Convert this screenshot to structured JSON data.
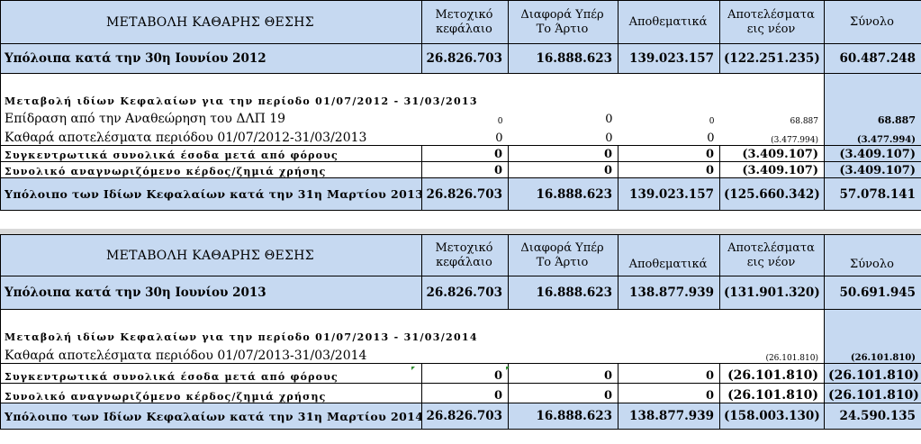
{
  "columns": [
    "Μετοχικό κεφάλαιο",
    "Διαφορά Υπέρ Το Άρτιο",
    "Αποθεματικά",
    "Αποτελέσματα εις νέον",
    "Σύνολο"
  ],
  "tables": [
    {
      "title": "ΜΕΤΑΒΟΛΗ ΚΑΘΑΡΗΣ ΘΕΣΗΣ",
      "col1": [
        "Μετοχικό",
        "κεφάλαιο"
      ],
      "col2": [
        "Διαφορά Υπέρ",
        "Το Άρτιο"
      ],
      "col3": "Αποθεματικά",
      "col4": [
        "Αποτελέσματα",
        "εις νέον"
      ],
      "col5": "Σύνολο",
      "opening": {
        "label": "Υπόλοιπα κατά την 30η Ιουνίου 2012",
        "values": [
          "26.826.703",
          "16.888.623",
          "139.023.157",
          "(122.251.235)",
          "60.487.248"
        ]
      },
      "caption": "Μεταβολή ιδίων Κεφαλαίων για την περίοδο 01/07/2012 - 31/03/2013",
      "rows": [
        {
          "label": "Επίδραση από την Αναθεώρηση του ΔΛΠ 19",
          "values": [
            "0",
            "0",
            "0",
            "68.887",
            "68.887"
          ]
        },
        {
          "label": "Καθαρά αποτελέσματα περιόδου 01/07/2012-31/03/2013",
          "values": [
            "0",
            "0",
            "0",
            "(3.477.994)",
            "(3.477.994)"
          ]
        },
        {
          "label": "Συγκεντρωτικά συνολικά έσοδα μετά από φόρους",
          "values": [
            "0",
            "0",
            "0",
            "(3.409.107)",
            "(3.409.107)"
          ]
        },
        {
          "label": "Συνολικό αναγνωριζόμενο κέρδος/ζημιά χρήσης",
          "values": [
            "0",
            "0",
            "0",
            "(3.409.107)",
            "(3.409.107)"
          ]
        }
      ],
      "closing": {
        "label": "Υπόλοιπο των Ιδίων Κεφαλαίων κατά την 31η Μαρτίου 2013",
        "values": [
          "26.826.703",
          "16.888.623",
          "139.023.157",
          "(125.660.342)",
          "57.078.141"
        ]
      }
    },
    {
      "title": "ΜΕΤΑΒΟΛΗ ΚΑΘΑΡΗΣ ΘΕΣΗΣ",
      "col1": [
        "Μετοχικό",
        "κεφάλαιο"
      ],
      "col2": [
        "Διαφορά Υπέρ",
        "Το Άρτιο"
      ],
      "col3": "Αποθεματικά",
      "col4": [
        "Αποτελέσματα",
        "εις νέον"
      ],
      "col5": "Σύνολο",
      "opening": {
        "label": "Υπόλοιπα κατά την 30η Ιουνίου 2013",
        "values": [
          "26.826.703",
          "16.888.623",
          "138.877.939",
          "(131.901.320)",
          "50.691.945"
        ]
      },
      "caption": "Μεταβολή ιδίων Κεφαλαίων για την περίοδο 01/07/2013 - 31/03/2014",
      "rows": [
        {
          "label": "Καθαρά αποτελέσματα περιόδου 01/07/2013-31/03/2014",
          "values": [
            "",
            "",
            "",
            "(26.101.810)",
            "(26.101.810)"
          ]
        },
        {
          "label": "Συγκεντρωτικά συνολικά έσοδα μετά από φόρους",
          "values": [
            "0",
            "0",
            "0",
            "(26.101.810)",
            "(26.101.810)"
          ]
        },
        {
          "label": "Συνολικό αναγνωριζόμενο κέρδος/ζημιά χρήσης",
          "values": [
            "0",
            "0",
            "0",
            "(26.101.810)",
            "(26.101.810)"
          ]
        }
      ],
      "closing": {
        "label": "Υπόλοιπο των Ιδίων Κεφαλαίων κατά την 31η Μαρτίου 2014",
        "values": [
          "26.826.703",
          "16.888.623",
          "138.877.939",
          "(158.003.130)",
          "24.590.135"
        ]
      }
    }
  ]
}
